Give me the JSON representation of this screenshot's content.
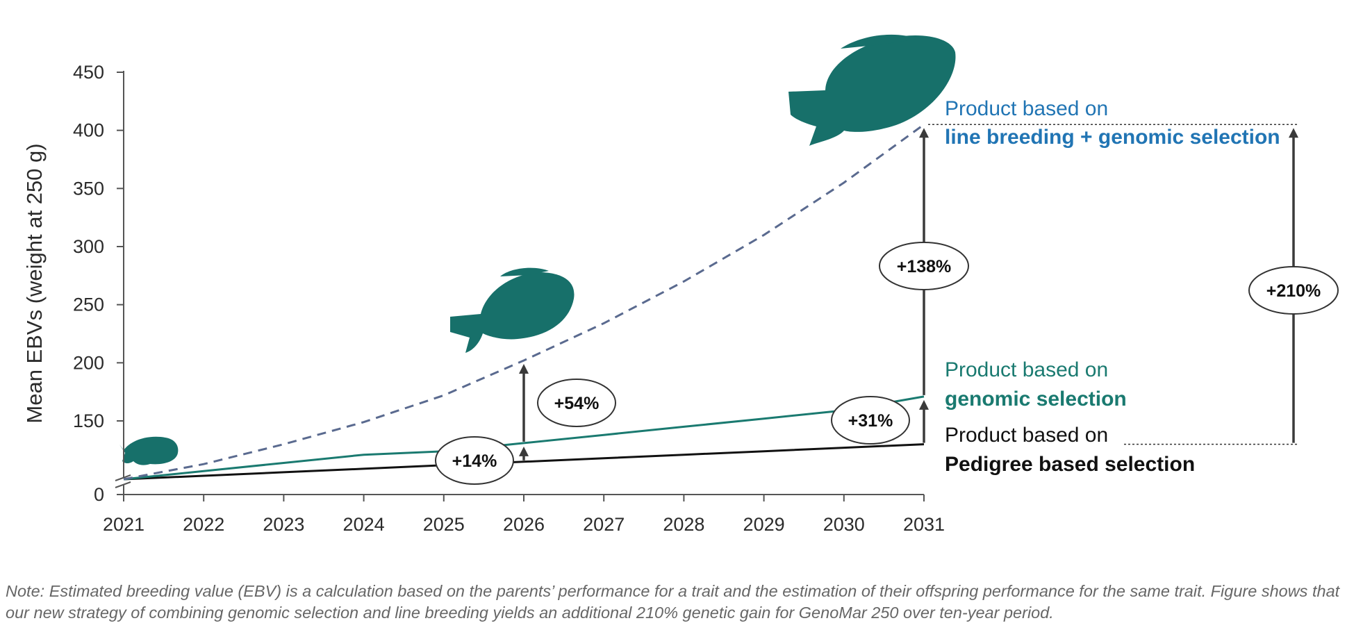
{
  "chart_data": {
    "type": "line",
    "title": "",
    "xlabel": "",
    "ylabel": "Mean EBVs (weight at 250 g)",
    "x": [
      2021,
      2022,
      2023,
      2024,
      2025,
      2026,
      2027,
      2028,
      2029,
      2030,
      2031
    ],
    "xlim": [
      2021,
      2031
    ],
    "ylim": [
      0,
      450
    ],
    "yticks": [
      0,
      150,
      200,
      250,
      300,
      350,
      400,
      450
    ],
    "axis_break": "between 0 and 150",
    "series": [
      {
        "name": "Pedigree based selection",
        "style": "solid",
        "color": "#111111",
        "values": [
          100,
          103,
          106,
          109,
          112,
          115,
          118,
          121,
          124,
          127,
          130
        ]
      },
      {
        "name": "Genomic selection",
        "style": "solid",
        "color": "#1a7a70",
        "values": [
          100,
          107,
          114,
          121,
          124,
          131,
          138,
          145,
          152,
          159,
          171
        ]
      },
      {
        "name": "Line breeding + genomic selection",
        "style": "dashed",
        "color": "#5a6a8f",
        "values": [
          100,
          113,
          130,
          149,
          172,
          202,
          234,
          270,
          310,
          355,
          405
        ]
      }
    ],
    "labels": {
      "line_genomic": {
        "prefix": "Product based on",
        "name": "line breeding + genomic selection",
        "color": "#2175b4"
      },
      "genomic": {
        "prefix": "Product based on",
        "name": "genomic selection",
        "color": "#1a7a70"
      },
      "pedigree": {
        "prefix": "Product based on",
        "name": "Pedigree based selection",
        "color": "#111111"
      }
    },
    "annotations": [
      {
        "text": "+14%",
        "year": 2026,
        "from": 115,
        "to": 131
      },
      {
        "text": "+54%",
        "year": 2026,
        "from": 131,
        "to": 202
      },
      {
        "text": "+31%",
        "year": 2031,
        "from": 130,
        "to": 171
      },
      {
        "text": "+138%",
        "year": 2031,
        "from": 171,
        "to": 405
      },
      {
        "text": "+210%",
        "year": "right",
        "from": 130,
        "to": 405
      }
    ],
    "fish_color": "#17706a"
  },
  "note": "Note: Estimated breeding value (EBV) is a calculation based on the parents’ performance for a trait and the estimation of their offspring performance for the same trait. Figure shows that our new strategy of combining genomic selection and line breeding yields an additional 210% genetic gain for GenoMar 250 over ten-year period."
}
